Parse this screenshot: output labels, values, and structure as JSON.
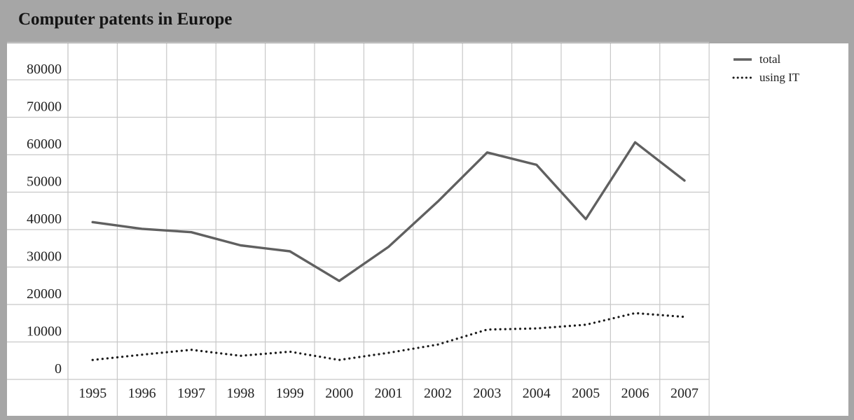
{
  "chart_data": {
    "type": "line",
    "title": "Computer patents in Europe",
    "xlabel": "",
    "ylabel": "",
    "categories": [
      "1995",
      "1996",
      "1997",
      "1998",
      "1999",
      "2000",
      "2001",
      "2002",
      "2003",
      "2004",
      "2005",
      "2006",
      "2007"
    ],
    "yticks": [
      "0",
      "10000",
      "20000",
      "30000",
      "40000",
      "50000",
      "60000",
      "70000",
      "80000"
    ],
    "ylim": [
      0,
      90000
    ],
    "grid": true,
    "legend_position": "top-right",
    "series": [
      {
        "name": "total",
        "style": "solid",
        "color": "#606060",
        "values": [
          42000,
          40200,
          39300,
          35800,
          34200,
          26300,
          35400,
          47500,
          60600,
          57300,
          42800,
          63300,
          53100
        ]
      },
      {
        "name": "using IT",
        "style": "dotted",
        "color": "#1a1a1a",
        "values": [
          5200,
          6600,
          7900,
          6300,
          7400,
          5200,
          7100,
          9300,
          13300,
          13600,
          14600,
          17700,
          16700
        ]
      }
    ]
  }
}
